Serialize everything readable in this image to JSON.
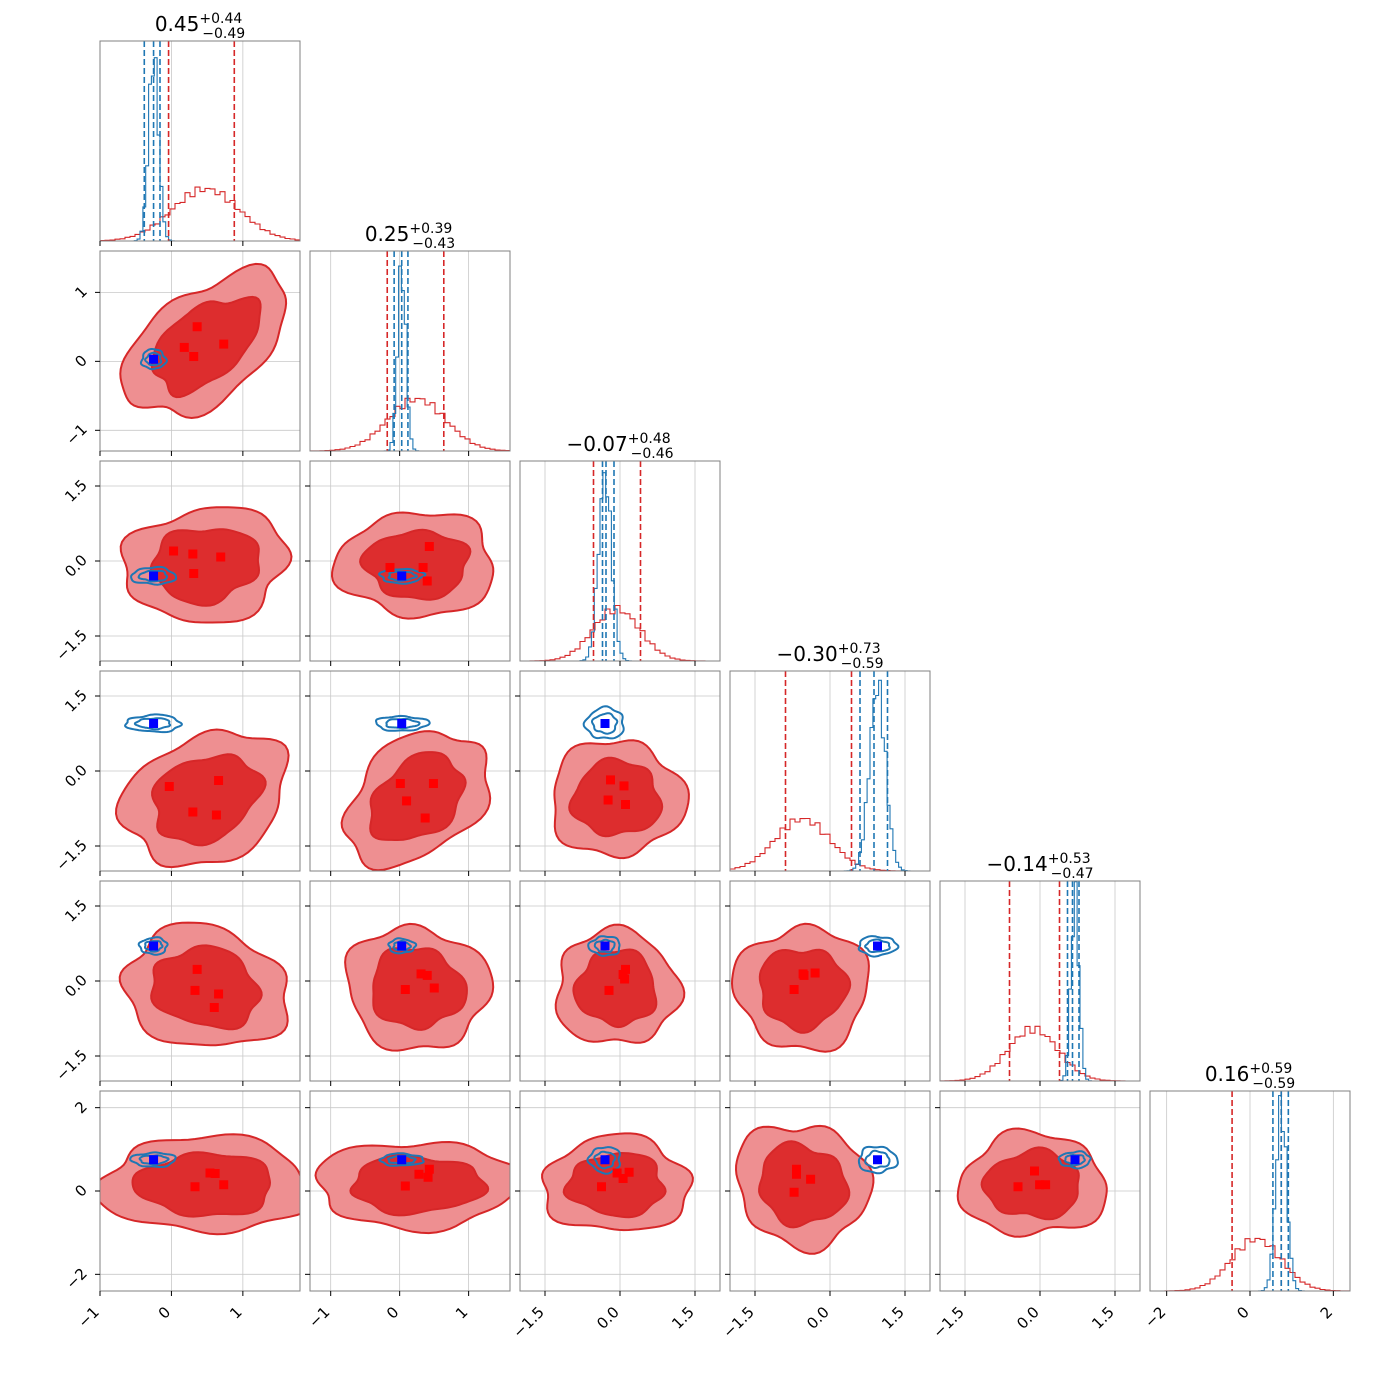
{
  "colors": {
    "red_line": "#d62728",
    "red_fill_outer": "#ee8f91",
    "red_fill_inner": "#dd2d2e",
    "red_marker": "#ff0000",
    "blue_line": "#1f77b4",
    "blue_marker": "#0000ff",
    "grid": "#c8c8c8",
    "frame": "#808080"
  },
  "chart_data": {
    "type": "corner",
    "grid": true,
    "n_params": 6,
    "params": [
      {
        "range": [
          -1.0,
          1.8
        ],
        "ticks": [
          -1,
          0,
          1
        ],
        "tick_labels": [
          "−1",
          "0",
          "1"
        ],
        "title": {
          "main": "0.45",
          "sup": "+0.44",
          "sub": "−0.49"
        },
        "red_lines": [
          -0.04,
          0.88
        ],
        "blue_lines": [
          -0.38,
          -0.16,
          -0.25
        ],
        "red_hist": {
          "mu": 0.48,
          "sigma": 0.47
        },
        "blue_hist": {
          "mu": -0.25,
          "sigma": 0.07
        }
      },
      {
        "range": [
          -1.3,
          1.6
        ],
        "ticks": [
          -1,
          0,
          1
        ],
        "tick_labels": [
          "−1",
          "0",
          "1"
        ],
        "title": {
          "main": "0.25",
          "sup": "+0.39",
          "sub": "−0.43"
        },
        "red_lines": [
          -0.18,
          0.64
        ],
        "blue_lines": [
          -0.08,
          0.12,
          0.03
        ],
        "red_hist": {
          "mu": 0.25,
          "sigma": 0.42
        },
        "blue_hist": {
          "mu": 0.03,
          "sigma": 0.06
        }
      },
      {
        "range": [
          -2.0,
          2.0
        ],
        "ticks": [
          -1.5,
          0,
          1.5
        ],
        "tick_labels": [
          "−1.5",
          "0.0",
          "1.5"
        ],
        "title": {
          "main": "−0.07",
          "sup": "+0.48",
          "sub": "−0.46"
        },
        "red_lines": [
          -0.53,
          0.41
        ],
        "blue_lines": [
          -0.35,
          -0.12,
          -0.28
        ],
        "red_hist": {
          "mu": -0.07,
          "sigma": 0.47
        },
        "blue_hist": {
          "mu": -0.3,
          "sigma": 0.13
        }
      },
      {
        "range": [
          -2.0,
          2.0
        ],
        "ticks": [
          -1.5,
          0,
          1.5
        ],
        "tick_labels": [
          "−1.5",
          "0.0",
          "1.5"
        ],
        "title": {
          "main": "−0.30",
          "sup": "+0.73",
          "sub": "−0.59"
        },
        "red_lines": [
          -0.89,
          0.43
        ],
        "blue_lines": [
          0.6,
          1.15,
          0.88
        ],
        "red_hist": {
          "mu": -0.55,
          "sigma": 0.55
        },
        "blue_hist": {
          "mu": 0.95,
          "sigma": 0.16
        }
      },
      {
        "range": [
          -2.0,
          2.0
        ],
        "ticks": [
          -1.5,
          0,
          1.5
        ],
        "tick_labels": [
          "−1.5",
          "0.0",
          "1.5"
        ],
        "title": {
          "main": "−0.14",
          "sup": "+0.53",
          "sub": "−0.47"
        },
        "red_lines": [
          -0.61,
          0.39
        ],
        "blue_lines": [
          0.55,
          0.78,
          0.65
        ],
        "red_hist": {
          "mu": -0.14,
          "sigma": 0.5
        },
        "blue_hist": {
          "mu": 0.7,
          "sigma": 0.08
        }
      },
      {
        "range": [
          -2.4,
          2.4
        ],
        "ticks": [
          -2,
          0,
          2
        ],
        "tick_labels": [
          "−2",
          "0",
          "2"
        ],
        "title": {
          "main": "0.16",
          "sup": "+0.59",
          "sub": "−0.59"
        },
        "red_lines": [
          -0.43,
          0.75
        ],
        "blue_lines": [
          0.55,
          0.92,
          0.75
        ],
        "red_hist": {
          "mu": 0.15,
          "sigma": 0.6
        },
        "blue_hist": {
          "mu": 0.75,
          "sigma": 0.13
        }
      }
    ],
    "red_markers": [
      [
        0.62,
        0.5
      ],
      [
        0.42,
        0.25
      ],
      [
        0.47,
        0.22
      ],
      [
        -0.08,
        -0.3
      ],
      [
        0.62,
        0.0
      ],
      [
        0.42,
        0.0
      ],
      [
        -0.08,
        -0.3
      ],
      [
        0.55,
        0.25
      ],
      [
        0.35,
        -0.1
      ],
      [
        0.45,
        -0.55
      ],
      [
        -0.1,
        -0.45
      ],
      [
        0.6,
        0.5
      ],
      [
        0.4,
        -0.65
      ],
      [
        0.5,
        -0.2
      ],
      [
        -0.08,
        -0.05
      ],
      [
        0.62,
        0.0
      ],
      [
        0.42,
        0.45
      ],
      [
        0.47,
        0.3
      ],
      [
        -0.08,
        -0.05
      ]
    ],
    "blue_marker": [
      -0.25,
      0.03,
      -0.3,
      0.95,
      0.7,
      0.75
    ],
    "red_cov": [
      [
        0.22,
        0.1,
        0.02,
        0.06,
        -0.03,
        0.0
      ],
      [
        0.1,
        0.18,
        0.0,
        0.08,
        -0.01,
        0.0
      ],
      [
        0.02,
        0.0,
        0.22,
        0.0,
        0.0,
        0.0
      ],
      [
        0.06,
        0.08,
        0.0,
        0.3,
        0.0,
        -0.03
      ],
      [
        -0.03,
        -0.01,
        0.0,
        0.0,
        0.25,
        0.0
      ],
      [
        0.0,
        0.0,
        0.0,
        -0.03,
        0.0,
        0.36
      ]
    ],
    "blue_sigma": [
      0.07,
      0.06,
      0.13,
      0.16,
      0.08,
      0.13
    ]
  }
}
